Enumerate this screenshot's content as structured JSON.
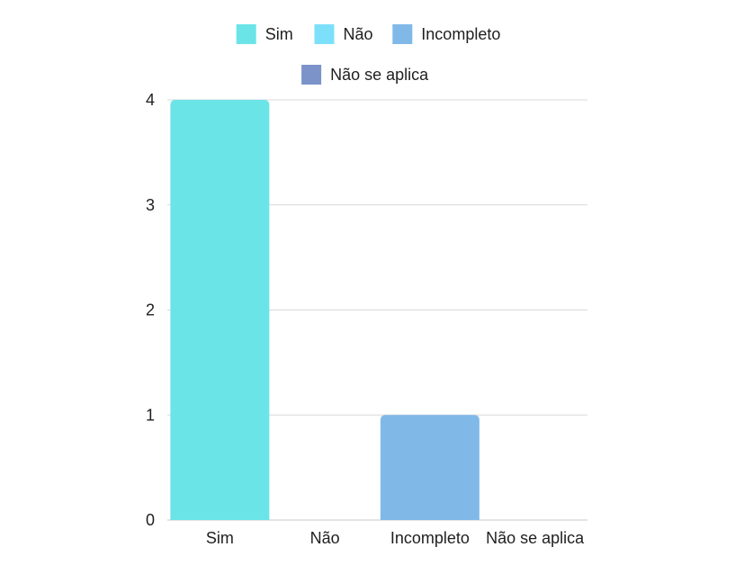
{
  "chart_data": {
    "type": "bar",
    "categories": [
      "Sim",
      "Não",
      "Incompleto",
      "Não se aplica"
    ],
    "values": [
      4,
      0,
      1,
      0
    ],
    "colors": [
      "#6be4e8",
      "#7de0fa",
      "#80b9e8",
      "#7b93c9"
    ],
    "legend": {
      "placement": "top-center",
      "items": [
        {
          "label": "Sim",
          "color": "#6be4e8"
        },
        {
          "label": "Não",
          "color": "#7de0fa"
        },
        {
          "label": "Incompleto",
          "color": "#80b9e8"
        },
        {
          "label": "Não se aplica",
          "color": "#7b93c9"
        }
      ]
    },
    "yticks": [
      "0",
      "1",
      "2",
      "3",
      "4"
    ],
    "ylim": [
      0,
      4
    ],
    "grid": true,
    "title": "",
    "xlabel": "",
    "ylabel": ""
  }
}
